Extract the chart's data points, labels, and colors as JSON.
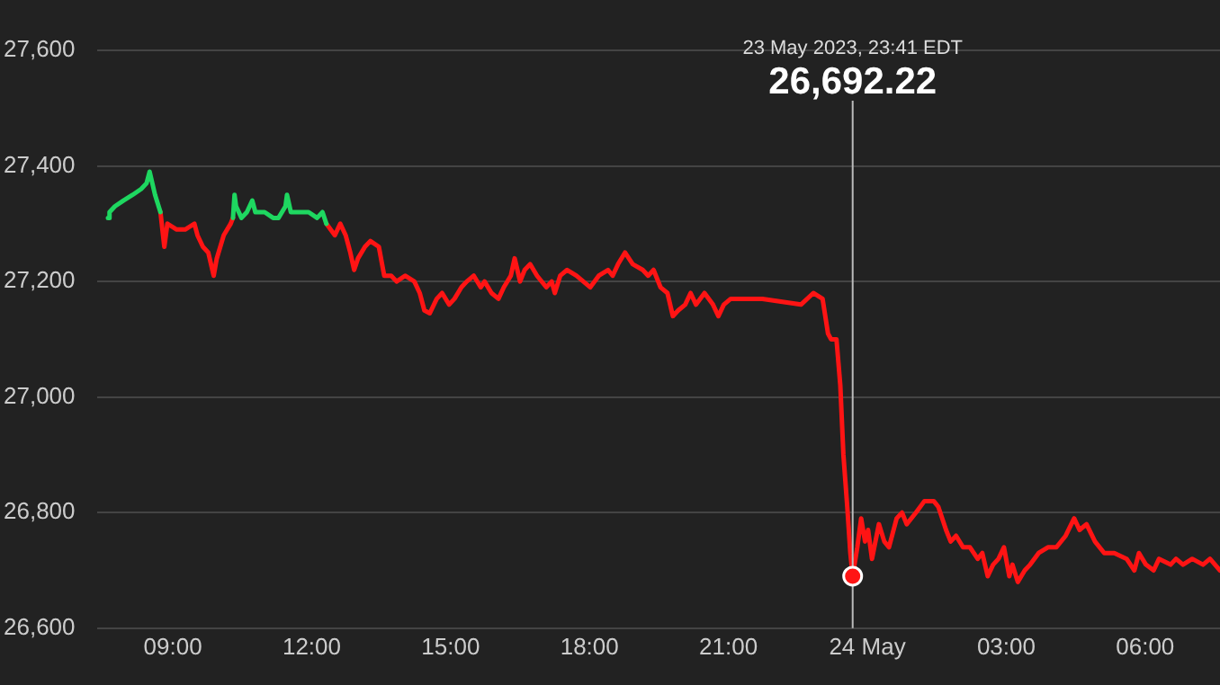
{
  "chart_data": {
    "type": "line",
    "series": [
      {
        "color": "#1ed760",
        "x": [
          "2023-05-23T07:36",
          "2023-05-23T07:38",
          "2023-05-23T07:45",
          "2023-05-23T07:56",
          "2023-05-23T08:08",
          "2023-05-23T08:19",
          "2023-05-23T08:26",
          "2023-05-23T08:30",
          "2023-05-23T08:37",
          "2023-05-23T08:44",
          "2023-05-23T09:30",
          "2023-05-23T10:18",
          "2023-05-23T10:20",
          "2023-05-23T10:22",
          "2023-05-23T10:29",
          "2023-05-23T10:36",
          "2023-05-23T10:43",
          "2023-05-23T10:47",
          "2023-05-23T10:59",
          "2023-05-23T11:10",
          "2023-05-23T11:17",
          "2023-05-23T11:26",
          "2023-05-23T11:28",
          "2023-05-23T11:33",
          "2023-05-23T11:44",
          "2023-05-23T11:56",
          "2023-05-23T12:07",
          "2023-05-23T12:14",
          "2023-05-23T12:19"
        ],
        "values": [
          27310,
          27320,
          27330,
          27340,
          27350,
          27360,
          27370,
          27390,
          27350,
          27320,
          null,
          27310,
          27350,
          27330,
          27310,
          27320,
          27340,
          27320,
          27320,
          27310,
          27310,
          27330,
          27350,
          27320,
          27320,
          27320,
          27310,
          27320,
          27300
        ]
      },
      {
        "color": "#ff1414",
        "x": [
          "2023-05-23T08:44",
          "2023-05-23T08:49",
          "2023-05-23T08:53",
          "2023-05-23T09:05",
          "2023-05-23T09:16",
          "2023-05-23T09:28",
          "2023-05-23T09:32",
          "2023-05-23T09:39",
          "2023-05-23T09:46",
          "2023-05-23T09:53",
          "2023-05-23T09:57",
          "2023-05-23T10:06",
          "2023-05-23T10:15",
          "2023-05-23T10:18",
          "2023-05-23T11:00",
          "2023-05-23T12:19",
          "2023-05-23T12:30",
          "2023-05-23T12:37",
          "2023-05-23T12:44",
          "2023-05-23T12:50",
          "2023-05-23T12:55",
          "2023-05-23T13:00",
          "2023-05-23T13:09",
          "2023-05-23T13:16",
          "2023-05-23T13:27",
          "2023-05-23T13:34",
          "2023-05-23T13:43",
          "2023-05-23T13:50",
          "2023-05-23T14:01",
          "2023-05-23T14:13",
          "2023-05-23T14:20",
          "2023-05-23T14:26",
          "2023-05-23T14:33",
          "2023-05-23T14:42",
          "2023-05-23T14:49",
          "2023-05-23T14:58",
          "2023-05-23T15:05",
          "2023-05-23T15:14",
          "2023-05-23T15:21",
          "2023-05-23T15:30",
          "2023-05-23T15:39",
          "2023-05-23T15:44",
          "2023-05-23T15:53",
          "2023-05-23T16:02",
          "2023-05-23T16:09",
          "2023-05-23T16:18",
          "2023-05-23T16:23",
          "2023-05-23T16:30",
          "2023-05-23T16:36",
          "2023-05-23T16:43",
          "2023-05-23T16:52",
          "2023-05-23T17:04",
          "2023-05-23T17:11",
          "2023-05-23T17:15",
          "2023-05-23T17:22",
          "2023-05-23T17:31",
          "2023-05-23T17:43",
          "2023-05-23T17:52",
          "2023-05-23T18:01",
          "2023-05-23T18:12",
          "2023-05-23T18:24",
          "2023-05-23T18:30",
          "2023-05-23T18:37",
          "2023-05-23T18:46",
          "2023-05-23T18:56",
          "2023-05-23T19:09",
          "2023-05-23T19:16",
          "2023-05-23T19:23",
          "2023-05-23T19:32",
          "2023-05-23T19:41",
          "2023-05-23T19:48",
          "2023-05-23T19:55",
          "2023-05-23T20:04",
          "2023-05-23T20:11",
          "2023-05-23T20:18",
          "2023-05-23T20:29",
          "2023-05-23T20:40",
          "2023-05-23T20:47",
          "2023-05-23T20:54",
          "2023-05-23T21:03",
          "2023-05-23T21:26",
          "2023-05-23T21:44",
          "2023-05-23T22:34",
          "2023-05-23T22:50",
          "2023-05-23T23:02",
          "2023-05-23T23:09",
          "2023-05-23T23:13",
          "2023-05-23T23:20",
          "2023-05-23T23:25",
          "2023-05-23T23:29",
          "2023-05-23T23:34",
          "2023-05-23T23:38",
          "2023-05-23T23:41",
          "2023-05-23T23:47",
          "2023-05-23T23:52",
          "2023-05-23T23:57",
          "2023-05-24T00:01",
          "2023-05-24T00:06",
          "2023-05-24T00:15",
          "2023-05-24T00:22",
          "2023-05-24T00:28",
          "2023-05-24T00:38",
          "2023-05-24T00:45",
          "2023-05-24T00:51",
          "2023-05-24T01:03",
          "2023-05-24T01:14",
          "2023-05-24T01:26",
          "2023-05-24T01:32",
          "2023-05-24T01:42",
          "2023-05-24T01:48",
          "2023-05-24T01:55",
          "2023-05-24T02:04",
          "2023-05-24T02:13",
          "2023-05-24T02:23",
          "2023-05-24T02:29",
          "2023-05-24T02:36",
          "2023-05-24T02:43",
          "2023-05-24T02:50",
          "2023-05-24T02:57",
          "2023-05-24T03:04",
          "2023-05-24T03:08",
          "2023-05-24T03:15",
          "2023-05-24T03:24",
          "2023-05-24T03:31",
          "2023-05-24T03:42",
          "2023-05-24T03:54",
          "2023-05-24T04:05",
          "2023-05-24T04:17",
          "2023-05-24T04:28",
          "2023-05-24T04:35",
          "2023-05-24T04:44",
          "2023-05-24T04:55",
          "2023-05-24T05:07",
          "2023-05-24T05:20",
          "2023-05-24T05:36",
          "2023-05-24T05:46",
          "2023-05-24T05:52",
          "2023-05-24T06:01",
          "2023-05-24T06:11",
          "2023-05-24T06:18",
          "2023-05-24T06:33",
          "2023-05-24T06:40",
          "2023-05-24T06:49",
          "2023-05-24T07:01",
          "2023-05-24T07:15",
          "2023-05-24T07:24",
          "2023-05-24T07:37"
        ],
        "values": [
          27320,
          27260,
          27300,
          27290,
          27290,
          27300,
          27280,
          27260,
          27250,
          27210,
          27240,
          27280,
          27300,
          27310,
          null,
          27300,
          27280,
          27300,
          27280,
          27250,
          27220,
          27240,
          27260,
          27270,
          27260,
          27210,
          27210,
          27200,
          27210,
          27200,
          27180,
          27150,
          27145,
          27170,
          27180,
          27160,
          27170,
          27190,
          27200,
          27210,
          27190,
          27200,
          27180,
          27170,
          27190,
          27210,
          27240,
          27200,
          27220,
          27230,
          27210,
          27190,
          27200,
          27180,
          27210,
          27220,
          27210,
          27200,
          27190,
          27210,
          27220,
          27210,
          27230,
          27250,
          27230,
          27220,
          27210,
          27220,
          27190,
          27180,
          27140,
          27150,
          27160,
          27180,
          27160,
          27180,
          27160,
          27140,
          27160,
          27170,
          27170,
          27170,
          27160,
          27180,
          27170,
          27110,
          27100,
          27100,
          27020,
          26900,
          26810,
          26730,
          26690,
          26740,
          26790,
          26750,
          26770,
          26720,
          26780,
          26750,
          26740,
          26790,
          26800,
          26780,
          26800,
          26820,
          26820,
          26810,
          26770,
          26750,
          26760,
          26740,
          26740,
          26720,
          26730,
          26690,
          26710,
          26720,
          26740,
          26690,
          26710,
          26680,
          26700,
          26710,
          26730,
          26740,
          26740,
          26760,
          26790,
          26770,
          26780,
          26750,
          26730,
          26730,
          26720,
          26700,
          26730,
          26710,
          26700,
          26720,
          26710,
          26720,
          26710,
          26720,
          26710,
          26720,
          26700
        ]
      }
    ],
    "xlim": [
      "2023-05-23T07:22",
      "2023-05-24T07:37"
    ],
    "xticks": [
      {
        "value": "2023-05-23T09:00",
        "label": "09:00"
      },
      {
        "value": "2023-05-23T12:00",
        "label": "12:00"
      },
      {
        "value": "2023-05-23T15:00",
        "label": "15:00"
      },
      {
        "value": "2023-05-23T18:00",
        "label": "18:00"
      },
      {
        "value": "2023-05-23T21:00",
        "label": "21:00"
      },
      {
        "value": "2023-05-24T00:00",
        "label": "24 May"
      },
      {
        "value": "2023-05-24T03:00",
        "label": "03:00"
      },
      {
        "value": "2023-05-24T06:00",
        "label": "06:00"
      }
    ],
    "ylim": [
      26600,
      27600
    ],
    "yticks": [
      {
        "value": 26600,
        "label": "26,600"
      },
      {
        "value": 26800,
        "label": "26,800"
      },
      {
        "value": 27000,
        "label": "27,000"
      },
      {
        "value": 27200,
        "label": "27,200"
      },
      {
        "value": 27400,
        "label": "27,400"
      },
      {
        "value": 27600,
        "label": "27,600"
      }
    ],
    "ref_lines": [
      {
        "axis": "x",
        "value": "2023-05-23T23:41",
        "color": "#bbbbbb"
      }
    ],
    "annotations": [
      "23 May 2023, 23:41 EDT",
      "26,692.22"
    ],
    "grid": "y",
    "legend": false,
    "marker": "none",
    "line_style": "solid"
  }
}
